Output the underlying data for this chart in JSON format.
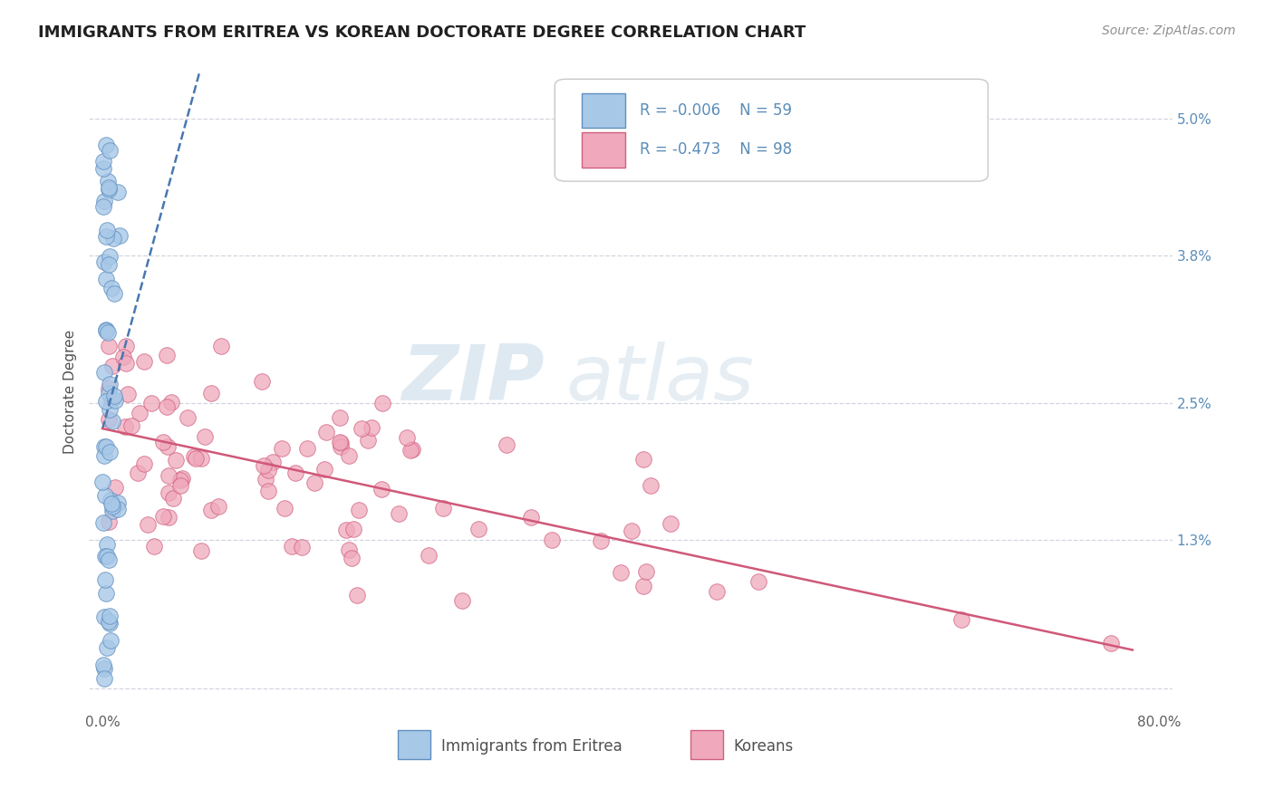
{
  "title": "IMMIGRANTS FROM ERITREA VS KOREAN DOCTORATE DEGREE CORRELATION CHART",
  "source": "Source: ZipAtlas.com",
  "ylabel": "Doctorate Degree",
  "xlim": [
    -1,
    81
  ],
  "ylim": [
    -0.2,
    5.4
  ],
  "yticks": [
    0,
    1.3,
    2.5,
    3.8,
    5.0
  ],
  "ytick_labels": [
    "",
    "1.3%",
    "2.5%",
    "3.8%",
    "5.0%"
  ],
  "xticks": [
    0,
    10,
    20,
    30,
    40,
    50,
    60,
    70,
    80
  ],
  "xtick_labels": [
    "0.0%",
    "",
    "",
    "",
    "",
    "",
    "",
    "",
    "80.0%"
  ],
  "watermark_zip": "ZIP",
  "watermark_atlas": "atlas",
  "legend_eritrea_r": "-0.006",
  "legend_eritrea_n": "59",
  "legend_korean_r": "-0.473",
  "legend_korean_n": "98",
  "eritrea_color": "#a8c8e8",
  "korean_color": "#f0a8bc",
  "eritrea_edge": "#6090c0",
  "korean_edge": "#d06080",
  "trend_eritrea_color": "#4878b0",
  "trend_korean_color": "#d05878",
  "legend_label_eritrea": "Immigrants from Eritrea",
  "legend_label_korean": "Koreans",
  "background_color": "#ffffff",
  "grid_color": "#c8c8d8",
  "title_color": "#202020",
  "source_color": "#909090",
  "axis_label_color": "#505050",
  "ytick_color": "#5b8db8"
}
